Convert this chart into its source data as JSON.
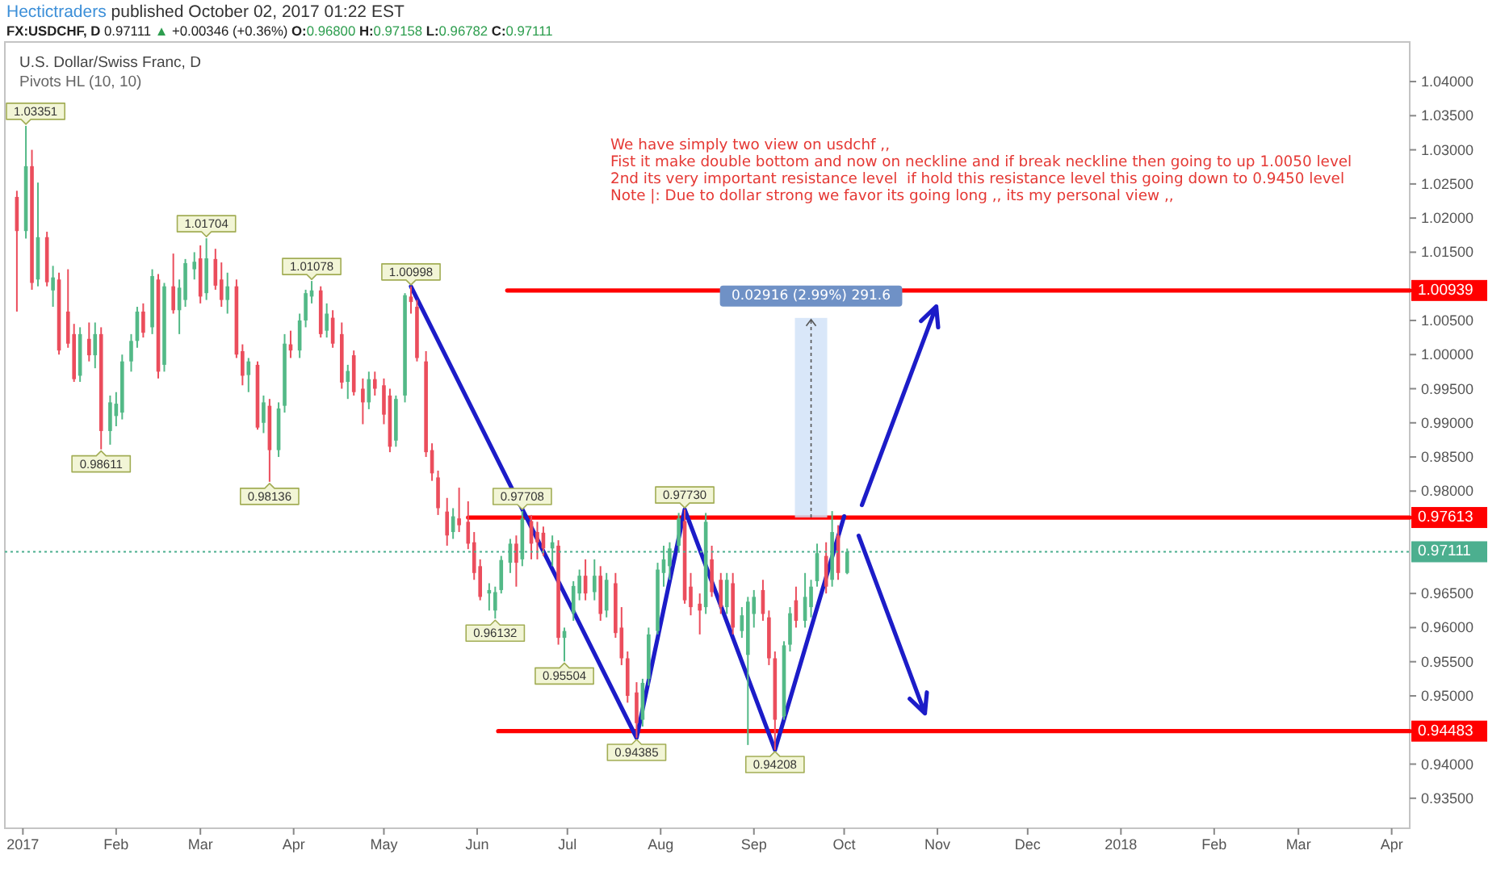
{
  "chart_data": {
    "type": "candlestick",
    "title": "Hectictraders published October 02, 2017 01:22 EST",
    "subtitle": "FX:USDCHF, D 0.97111 ▲ +0.00346 (+0.36%) O:0.96800 H:0.97158 L:0.96782 C:0.97111",
    "xlim": [
      "2016-12-26",
      "2018-04-07"
    ],
    "xticks": [
      {
        "value": "2017-01-01",
        "label": "2017"
      },
      {
        "value": "2017-02-01",
        "label": "Feb"
      },
      {
        "value": "2017-03-01",
        "label": "Mar"
      },
      {
        "value": "2017-04-01",
        "label": "Apr"
      },
      {
        "value": "2017-05-01",
        "label": "May"
      },
      {
        "value": "2017-06-01",
        "label": "Jun"
      },
      {
        "value": "2017-07-01",
        "label": "Jul"
      },
      {
        "value": "2017-08-01",
        "label": "Aug"
      },
      {
        "value": "2017-09-01",
        "label": "Sep"
      },
      {
        "value": "2017-10-01",
        "label": "Oct"
      },
      {
        "value": "2017-11-01",
        "label": "Nov"
      },
      {
        "value": "2017-12-01",
        "label": "Dec"
      },
      {
        "value": "2018-01-01",
        "label": "2018"
      },
      {
        "value": "2018-02-01",
        "label": "Feb"
      },
      {
        "value": "2018-03-01",
        "label": "Mar"
      },
      {
        "value": "2018-04-01",
        "label": "Apr"
      }
    ],
    "ylim": [
      0.9306,
      1.0458
    ],
    "yticks": [
      {
        "value": 1.04,
        "label": "1.04000"
      },
      {
        "value": 1.035,
        "label": "1.03500"
      },
      {
        "value": 1.03,
        "label": "1.03000"
      },
      {
        "value": 1.025,
        "label": "1.02500"
      },
      {
        "value": 1.02,
        "label": "1.02000"
      },
      {
        "value": 1.015,
        "label": "1.01500"
      },
      {
        "value": 1.005,
        "label": "1.00500"
      },
      {
        "value": 1.0,
        "label": "1.00000"
      },
      {
        "value": 0.995,
        "label": "0.99500"
      },
      {
        "value": 0.99,
        "label": "0.99000"
      },
      {
        "value": 0.985,
        "label": "0.98500"
      },
      {
        "value": 0.98,
        "label": "0.98000"
      },
      {
        "value": 0.965,
        "label": "0.96500"
      },
      {
        "value": 0.96,
        "label": "0.96000"
      },
      {
        "value": 0.955,
        "label": "0.95500"
      },
      {
        "value": 0.95,
        "label": "0.95000"
      },
      {
        "value": 0.94,
        "label": "0.94000"
      },
      {
        "value": 0.935,
        "label": "0.93500"
      }
    ],
    "series": [
      {
        "type": "candlestick",
        "x": [
          "2016-12-30",
          "2017-01-02",
          "2017-01-04",
          "2017-01-06",
          "2017-01-09",
          "2017-01-11",
          "2017-01-13",
          "2017-01-16",
          "2017-01-18",
          "2017-01-20",
          "2017-01-23",
          "2017-01-25",
          "2017-01-27",
          "2017-01-30",
          "2017-02-01",
          "2017-02-03",
          "2017-02-06",
          "2017-02-08",
          "2017-02-10",
          "2017-02-13",
          "2017-02-15",
          "2017-02-17",
          "2017-02-20",
          "2017-02-22",
          "2017-02-24",
          "2017-02-27",
          "2017-03-01",
          "2017-03-03",
          "2017-03-06",
          "2017-03-08",
          "2017-03-10",
          "2017-03-13",
          "2017-03-15",
          "2017-03-17",
          "2017-03-20",
          "2017-03-22",
          "2017-03-24",
          "2017-03-27",
          "2017-03-29",
          "2017-03-31",
          "2017-04-03",
          "2017-04-05",
          "2017-04-07",
          "2017-04-10",
          "2017-04-12",
          "2017-04-14",
          "2017-04-17",
          "2017-04-19",
          "2017-04-21",
          "2017-04-24",
          "2017-04-26",
          "2017-04-28",
          "2017-05-01",
          "2017-05-03",
          "2017-05-05",
          "2017-05-08",
          "2017-05-10",
          "2017-05-12",
          "2017-05-15",
          "2017-05-17",
          "2017-05-19",
          "2017-05-22",
          "2017-05-24",
          "2017-05-26",
          "2017-05-29",
          "2017-05-31",
          "2017-06-02",
          "2017-06-05",
          "2017-06-07",
          "2017-06-09",
          "2017-06-12",
          "2017-06-14",
          "2017-06-16",
          "2017-06-19",
          "2017-06-21",
          "2017-06-23",
          "2017-06-26",
          "2017-06-28",
          "2017-06-30",
          "2017-07-03",
          "2017-07-05",
          "2017-07-07",
          "2017-07-10",
          "2017-07-12",
          "2017-07-14",
          "2017-07-17",
          "2017-07-19",
          "2017-07-21",
          "2017-07-24",
          "2017-07-26",
          "2017-07-28",
          "2017-07-31",
          "2017-08-02",
          "2017-08-04",
          "2017-08-07",
          "2017-08-09",
          "2017-08-11",
          "2017-08-14",
          "2017-08-16",
          "2017-08-18",
          "2017-08-21",
          "2017-08-23",
          "2017-08-25",
          "2017-08-28",
          "2017-08-30",
          "2017-09-01",
          "2017-09-04",
          "2017-09-06",
          "2017-09-08",
          "2017-09-11",
          "2017-09-13",
          "2017-09-15",
          "2017-09-18",
          "2017-09-20",
          "2017-09-22",
          "2017-09-25",
          "2017-09-27",
          "2017-09-29",
          "2017-10-02"
        ],
        "ohlc": [
          [
            1.0231,
            1.024,
            1.0063,
            1.0181
          ],
          [
            1.0181,
            1.03351,
            1.017,
            1.0276
          ],
          [
            1.0276,
            1.03,
            1.0095,
            1.0105
          ],
          [
            1.011,
            1.0252,
            1.01,
            1.0172
          ],
          [
            1.0172,
            1.018,
            1.01,
            1.0106
          ],
          [
            1.0094,
            1.013,
            1.007,
            1.0113
          ],
          [
            1.011,
            1.012,
            1.0,
            1.0006
          ],
          [
            1.0063,
            1.0125,
            1.001,
            1.0016
          ],
          [
            1.003,
            1.0045,
            0.996,
            0.9964
          ],
          [
            0.9969,
            1.004,
            0.996,
            1.003
          ],
          [
            1.0023,
            1.0047,
            0.999,
            0.9999
          ],
          [
            0.9999,
            1.0047,
            0.998,
            1.003
          ],
          [
            1.003,
            1.004,
            0.98611,
            0.9888
          ],
          [
            0.9888,
            0.994,
            0.9868,
            0.993
          ],
          [
            0.991,
            0.9945,
            0.9895,
            0.9928
          ],
          [
            0.9915,
            1.0,
            0.9905,
            0.999
          ],
          [
            0.999,
            1.003,
            0.9975,
            1.002
          ],
          [
            1.002,
            1.007,
            1.001,
            1.0063
          ],
          [
            1.0063,
            1.0075,
            1.0025,
            1.0032
          ],
          [
            1.004,
            1.0125,
            1.003,
            1.0115
          ],
          [
            1.011,
            1.0118,
            0.9965,
            0.9975
          ],
          [
            0.9985,
            1.0105,
            0.9975,
            1.01
          ],
          [
            1.01,
            1.0148,
            1.006,
            1.0065
          ],
          [
            1.0065,
            1.011,
            1.003,
            1.0098
          ],
          [
            1.008,
            1.014,
            1.007,
            1.0134
          ],
          [
            1.0125,
            1.015,
            1.011,
            1.0136
          ],
          [
            1.0141,
            1.016,
            1.0075,
            1.0085
          ],
          [
            1.009,
            1.01704,
            1.008,
            1.0141
          ],
          [
            1.014,
            1.0155,
            1.0095,
            1.0101
          ],
          [
            1.011,
            1.0135,
            1.007,
            1.008
          ],
          [
            1.008,
            1.012,
            1.006,
            1.01
          ],
          [
            1.01,
            1.011,
            0.9995,
            1.0
          ],
          [
            1.0005,
            1.0015,
            0.9955,
            0.9969
          ],
          [
            0.997,
            0.9995,
            0.9945,
            0.999
          ],
          [
            0.9985,
            0.999,
            0.989,
            0.9893
          ],
          [
            0.99,
            0.994,
            0.9885,
            0.993
          ],
          [
            0.9925,
            0.9935,
            0.98136,
            0.986
          ],
          [
            0.986,
            0.993,
            0.985,
            0.9921
          ],
          [
            0.9925,
            1.003,
            0.9915,
            1.0016
          ],
          [
            1.0015,
            1.0035,
            0.9995,
            1.0006
          ],
          [
            1.0006,
            1.006,
            0.9995,
            1.005
          ],
          [
            1.005,
            1.0095,
            1.004,
            1.009
          ],
          [
            1.0085,
            1.01078,
            1.0075,
            1.0094
          ],
          [
            1.0094,
            1.01,
            1.0025,
            1.003
          ],
          [
            1.0035,
            1.0075,
            1.0025,
            1.006
          ],
          [
            1.0054,
            1.0065,
            1.001,
            1.0016
          ],
          [
            1.003,
            1.0047,
            0.995,
            0.9959
          ],
          [
            0.996,
            0.9985,
            0.9935,
            0.9976
          ],
          [
            0.9999,
            1.0006,
            0.994,
            0.9945
          ],
          [
            0.995,
            0.9965,
            0.9898,
            0.993
          ],
          [
            0.993,
            0.9975,
            0.992,
            0.9964
          ],
          [
            0.9964,
            0.9975,
            0.994,
            0.995
          ],
          [
            0.9955,
            0.9965,
            0.9898,
            0.9912
          ],
          [
            0.994,
            0.995,
            0.9857,
            0.9865
          ],
          [
            0.9874,
            0.994,
            0.9865,
            0.9935
          ],
          [
            0.994,
            1.009,
            0.993,
            1.0087
          ],
          [
            1.0085,
            1.00998,
            1.006,
            1.0077
          ],
          [
            1.007,
            1.008,
            0.999,
            0.9995
          ],
          [
            0.999,
            1.0005,
            0.985,
            0.9857
          ],
          [
            0.986,
            0.987,
            0.9815,
            0.9826
          ],
          [
            0.982,
            0.983,
            0.9765,
            0.9775
          ],
          [
            0.977,
            0.979,
            0.972,
            0.9735
          ],
          [
            0.974,
            0.9775,
            0.973,
            0.9763
          ],
          [
            0.976,
            0.9805,
            0.974,
            0.975
          ],
          [
            0.9755,
            0.9785,
            0.9715,
            0.9723
          ],
          [
            0.9725,
            0.974,
            0.967,
            0.968
          ],
          [
            0.969,
            0.97,
            0.964,
            0.9645
          ],
          [
            0.965,
            0.9665,
            0.9625,
            0.9655
          ],
          [
            0.9625,
            0.966,
            0.96132,
            0.9652
          ],
          [
            0.9655,
            0.9705,
            0.965,
            0.9699
          ],
          [
            0.9695,
            0.973,
            0.968,
            0.9723
          ],
          [
            0.9723,
            0.9735,
            0.966,
            0.9695
          ],
          [
            0.97,
            0.97708,
            0.969,
            0.976
          ],
          [
            0.9756,
            0.9765,
            0.97,
            0.9723
          ],
          [
            0.974,
            0.9755,
            0.97,
            0.9725
          ],
          [
            0.9739,
            0.9748,
            0.9705,
            0.9716
          ],
          [
            0.9716,
            0.9735,
            0.969,
            0.9725
          ],
          [
            0.972,
            0.9728,
            0.9575,
            0.9585
          ],
          [
            0.9585,
            0.96,
            0.95504,
            0.9595
          ],
          [
            0.9621,
            0.9668,
            0.961,
            0.9661
          ],
          [
            0.965,
            0.9685,
            0.964,
            0.9676
          ],
          [
            0.9676,
            0.97,
            0.964,
            0.965
          ],
          [
            0.9652,
            0.97,
            0.964,
            0.9676
          ],
          [
            0.9676,
            0.969,
            0.961,
            0.962
          ],
          [
            0.9625,
            0.968,
            0.9615,
            0.967
          ],
          [
            0.9665,
            0.968,
            0.9585,
            0.9592
          ],
          [
            0.96,
            0.963,
            0.9545,
            0.9555
          ],
          [
            0.9555,
            0.9565,
            0.949,
            0.95
          ],
          [
            0.9505,
            0.952,
            0.94385,
            0.946
          ],
          [
            0.9465,
            0.9525,
            0.9455,
            0.9519
          ],
          [
            0.9525,
            0.96,
            0.9515,
            0.959
          ],
          [
            0.9595,
            0.9695,
            0.959,
            0.9685
          ],
          [
            0.968,
            0.972,
            0.966,
            0.97
          ],
          [
            0.969,
            0.9725,
            0.967,
            0.9716
          ],
          [
            0.972,
            0.9768,
            0.971,
            0.976
          ],
          [
            0.9756,
            0.9773,
            0.9635,
            0.964
          ],
          [
            0.966,
            0.968,
            0.9618,
            0.963
          ],
          [
            0.9635,
            0.965,
            0.959,
            0.9625
          ],
          [
            0.963,
            0.9768,
            0.962,
            0.9755
          ],
          [
            0.97,
            0.972,
            0.9645,
            0.9652
          ],
          [
            0.967,
            0.968,
            0.962,
            0.963
          ],
          [
            0.963,
            0.968,
            0.962,
            0.967
          ],
          [
            0.9665,
            0.968,
            0.959,
            0.96
          ],
          [
            0.9595,
            0.963,
            0.9585,
            0.9618
          ],
          [
            0.956,
            0.9645,
            0.9428,
            0.9638
          ],
          [
            0.962,
            0.9655,
            0.96,
            0.9645
          ],
          [
            0.9655,
            0.967,
            0.961,
            0.962
          ],
          [
            0.9615,
            0.9625,
            0.9545,
            0.9555
          ],
          [
            0.9555,
            0.9565,
            0.94208,
            0.9465
          ],
          [
            0.947,
            0.958,
            0.9465,
            0.9574
          ],
          [
            0.9575,
            0.963,
            0.9565,
            0.9621
          ],
          [
            0.964,
            0.966,
            0.96,
            0.961
          ],
          [
            0.961,
            0.968,
            0.96,
            0.9645
          ],
          [
            0.963,
            0.967,
            0.9615,
            0.966
          ],
          [
            0.9668,
            0.9723,
            0.966,
            0.9709
          ],
          [
            0.9705,
            0.9725,
            0.965,
            0.966
          ],
          [
            0.967,
            0.97707,
            0.966,
            0.974
          ],
          [
            0.9735,
            0.975,
            0.967,
            0.968
          ],
          [
            0.968,
            0.97158,
            0.96782,
            0.97111
          ]
        ]
      },
      {
        "type": "line",
        "x": [
          "2017-06-11",
          "2018-04-07"
        ],
        "values": [
          1.00939,
          1.00939
        ],
        "color": "#ff0000",
        "value_labels": [
          null,
          "1.00939"
        ]
      },
      {
        "type": "line",
        "x": [
          "2017-05-29",
          "2018-04-07"
        ],
        "values": [
          0.97613,
          0.97613
        ],
        "color": "#ff0000",
        "value_labels": [
          null,
          "0.97613"
        ]
      },
      {
        "type": "line",
        "x": [
          "2017-06-08",
          "2018-04-07"
        ],
        "values": [
          0.94483,
          0.94483
        ],
        "color": "#ff0000",
        "value_labels": [
          null,
          "0.94483"
        ]
      },
      {
        "type": "line",
        "x": [
          "2017-05-10",
          "2017-07-24",
          "2017-08-09",
          "2017-09-08",
          "2017-10-01"
        ],
        "values": [
          1.00998,
          0.94385,
          0.9773,
          0.94208,
          0.9763
        ],
        "color": "#1c1cc8"
      }
    ],
    "ref_lines": [
      {
        "axis": "y",
        "value": 0.97111,
        "label": "0.97111",
        "color": "#4caf8f",
        "line_style": "dotted"
      }
    ],
    "annotations": [
      "U.S. Dollar/Swiss Franc, D",
      "Pivots HL (10, 10)",
      "We have simply two view on usdchf ,,",
      "Fist it make double bottom and now on neckline and if break neckline then going to up 1.0050 level",
      "2nd its very important resistance level  if hold this resistance level this going down to 0.9450 level",
      "Note |: Due to dollar strong we favor its going long ,, its my personal view ,,",
      {
        "text": "0.02916 (2.99%) 291.6",
        "x": "2017-09-20",
        "y": 0.97613
      },
      {
        "text": "1.03351",
        "x": "2017-01-02",
        "y": 1.03351
      },
      {
        "text": "0.98611",
        "x": "2017-01-27",
        "y": 0.98611
      },
      {
        "text": "1.01704",
        "x": "2017-03-03",
        "y": 1.01704
      },
      {
        "text": "0.98136",
        "x": "2017-03-24",
        "y": 0.98136
      },
      {
        "text": "1.01078",
        "x": "2017-04-07",
        "y": 1.01078
      },
      {
        "text": "1.00998",
        "x": "2017-05-10",
        "y": 1.00998
      },
      {
        "text": "0.96132",
        "x": "2017-06-07",
        "y": 0.96132
      },
      {
        "text": "0.97708",
        "x": "2017-06-16",
        "y": 0.97708
      },
      {
        "text": "0.95504",
        "x": "2017-06-30",
        "y": 0.95504
      },
      {
        "text": "0.94385",
        "x": "2017-07-24",
        "y": 0.94385
      },
      {
        "text": "0.97730",
        "x": "2017-08-09",
        "y": 0.9773
      },
      {
        "text": "0.94208",
        "x": "2017-09-08",
        "y": 0.94208
      }
    ]
  }
}
